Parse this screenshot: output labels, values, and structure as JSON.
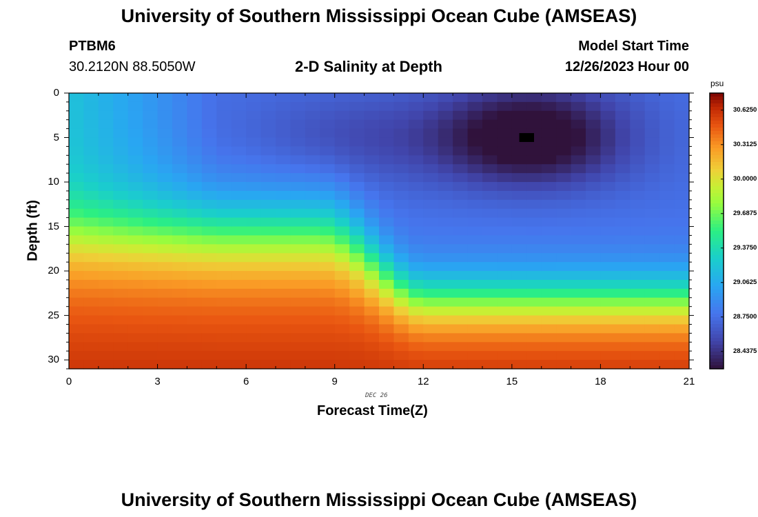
{
  "titles": {
    "main": "University of Southern Mississippi Ocean Cube (AMSEAS)",
    "repeat": "University of Southern Mississippi Ocean Cube (AMSEAS)"
  },
  "header": {
    "station": "PTBM6",
    "location": "30.2120N  88.5050W",
    "plot_title": "2-D Salinity at Depth",
    "model_start_label": "Model Start Time",
    "model_start_value": "12/26/2023 Hour 00"
  },
  "chart_data": {
    "type": "heatmap",
    "title": "2-D Salinity at Depth",
    "xlabel": "Forecast Time(Z)",
    "ylabel": "Depth (ft)",
    "date_label": "DEC 26",
    "xlim": [
      0,
      21
    ],
    "ylim": [
      0,
      31
    ],
    "xticks": [
      "0",
      "3",
      "6",
      "9",
      "12",
      "15",
      "18",
      "21"
    ],
    "yticks": [
      "0",
      "5",
      "10",
      "15",
      "20",
      "25",
      "30"
    ],
    "colorbar": {
      "unit": "psu",
      "min": 28.28,
      "max": 30.78,
      "ticks": [
        "28.4375",
        "28.7500",
        "29.0625",
        "29.3750",
        "29.6875",
        "30.0000",
        "30.3125",
        "30.6250"
      ],
      "tick_values": [
        28.4375,
        28.75,
        29.0625,
        29.375,
        29.6875,
        30.0,
        30.3125,
        30.625
      ]
    },
    "grid_note": "salinity field sampled every 0.5 h (x) and 1 ft (y)",
    "max_marker": {
      "time": 15.5,
      "depth": 5
    }
  }
}
